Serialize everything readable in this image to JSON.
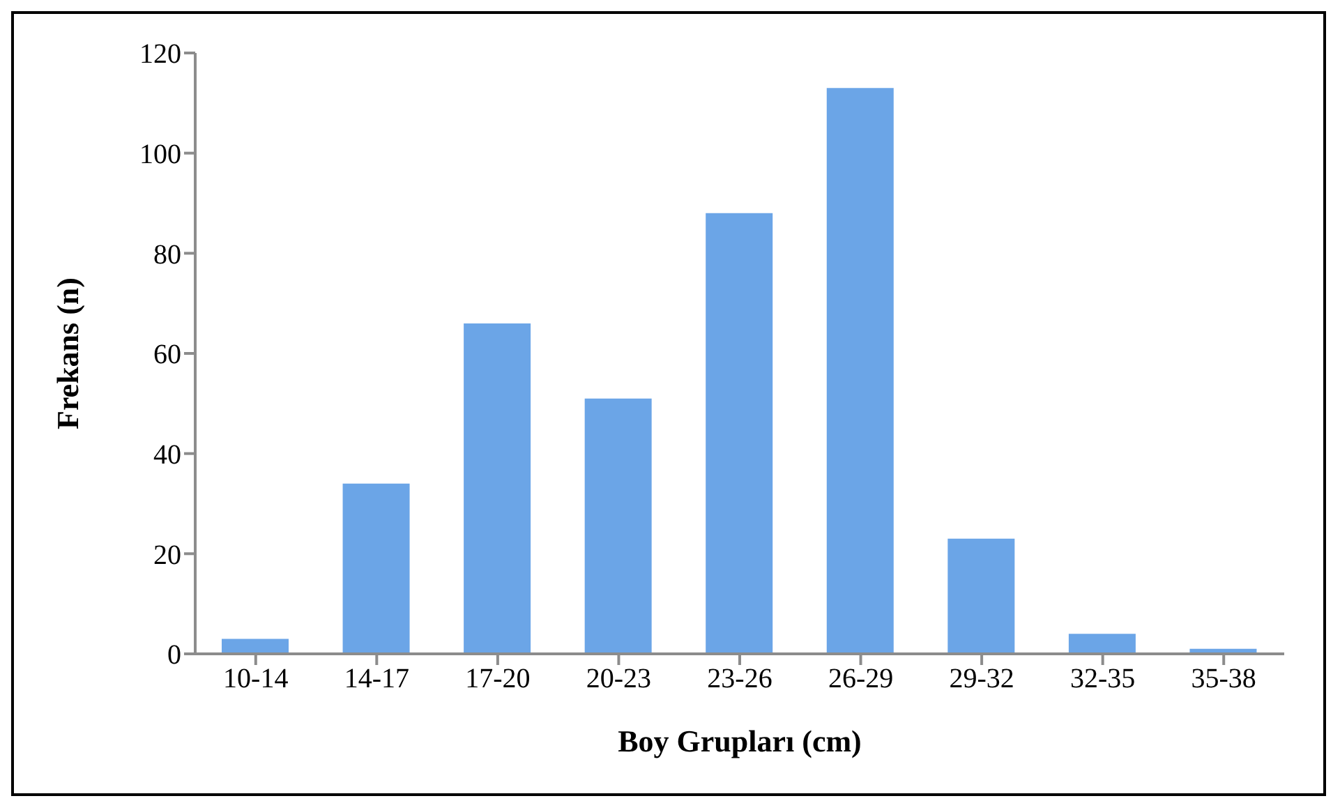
{
  "chart_data": {
    "type": "bar",
    "xlabel": "Boy Grupları (cm)",
    "ylabel": "Frekans (n)",
    "categories": [
      "10-14",
      "14-17",
      "17-20",
      "20-23",
      "23-26",
      "26-29",
      "29-32",
      "32-35",
      "35-38"
    ],
    "values": [
      3,
      34,
      66,
      51,
      88,
      113,
      23,
      4,
      1
    ],
    "color": "#6ba5e7",
    "ylim": [
      0,
      120
    ],
    "yticks": [
      0,
      20,
      40,
      60,
      80,
      100,
      120
    ],
    "grid": false,
    "legend": false
  }
}
